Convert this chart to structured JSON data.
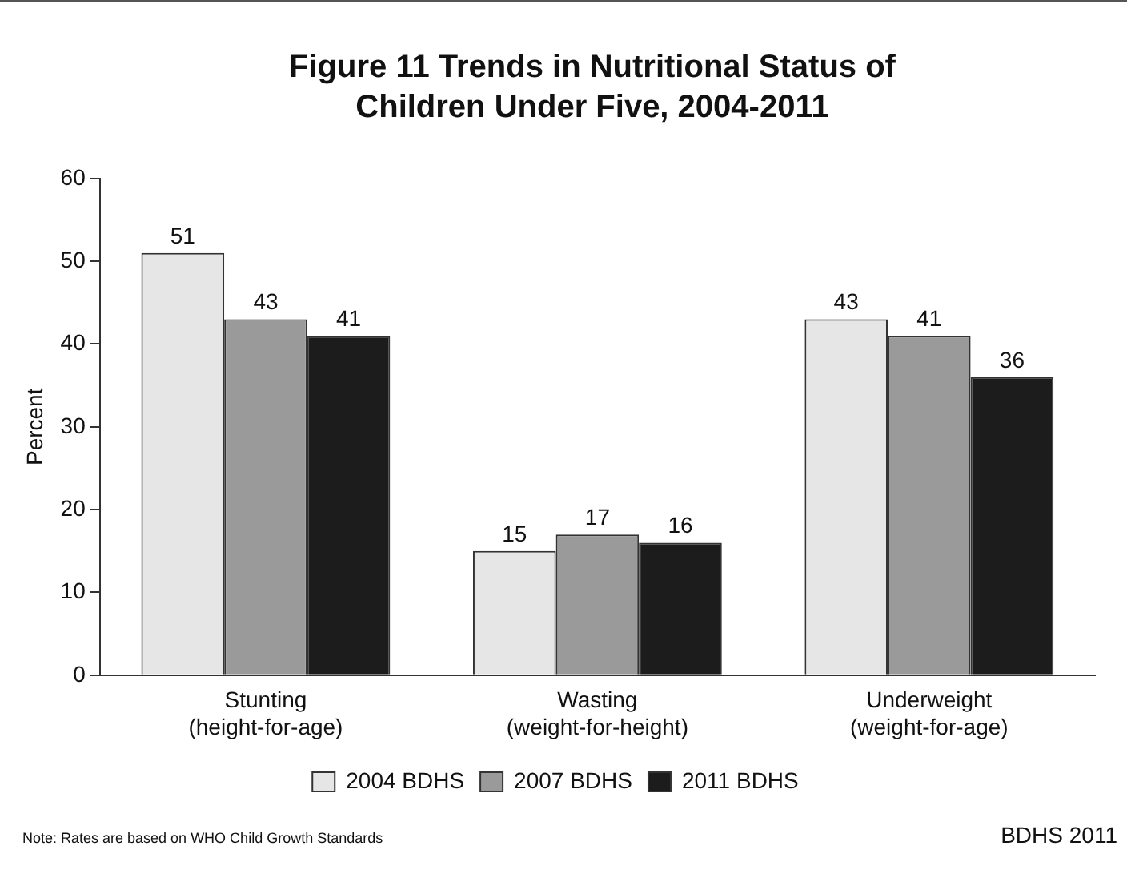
{
  "chart_data": {
    "type": "bar",
    "title": "Figure 11  Trends in Nutritional Status of Children Under Five, 2004-2011",
    "ylabel": "Percent",
    "categories": [
      "Stunting (height-for-age)",
      "Wasting (weight-for-height)",
      "Underweight (weight-for-age)"
    ],
    "series": [
      {
        "name": "2004 BDHS",
        "color": "#e6e6e6",
        "values": [
          51,
          15,
          43
        ]
      },
      {
        "name": "2007 BDHS",
        "color": "#9a9a9a",
        "values": [
          43,
          17,
          41
        ]
      },
      {
        "name": "2011 BDHS",
        "color": "#1c1c1c",
        "values": [
          41,
          16,
          36
        ]
      }
    ],
    "ylim": [
      0,
      60
    ],
    "yticks": [
      0,
      10,
      20,
      30,
      40,
      50,
      60
    ],
    "grid": false,
    "legend": "bottom",
    "data_labels": true,
    "annotations": [
      "Note: Rates are based on WHO Child Growth Standards",
      "BDHS 2011"
    ]
  }
}
